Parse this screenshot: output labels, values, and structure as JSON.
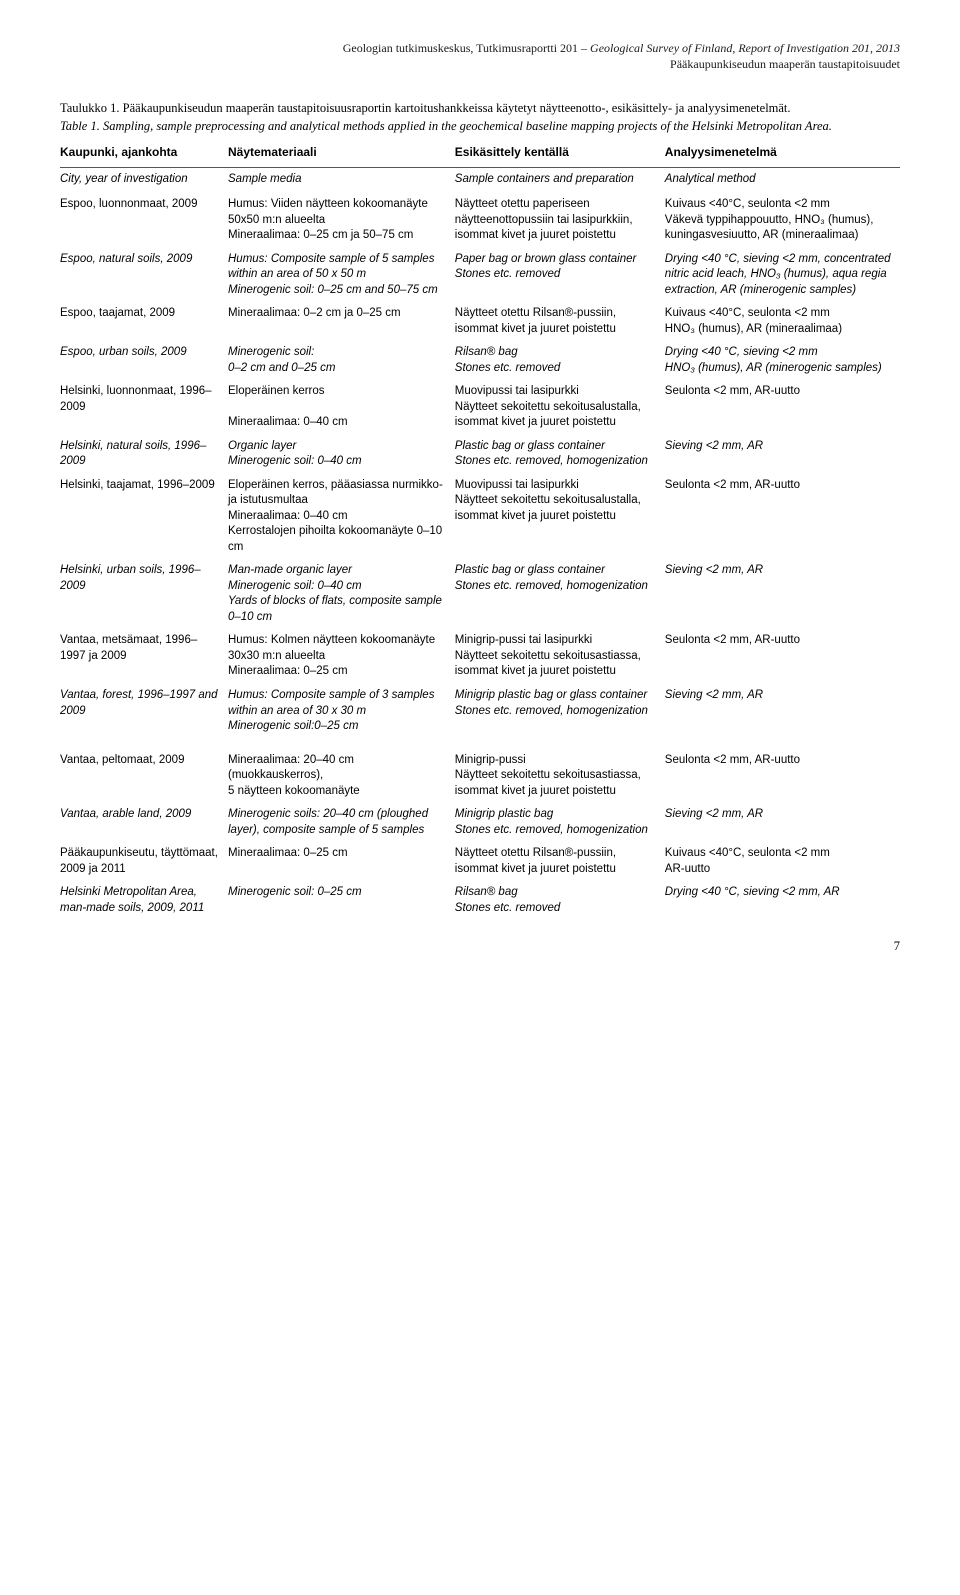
{
  "header": {
    "line1_left": "Geologian tutkimuskeskus, Tutkimusraportti 201 – ",
    "line1_right_italic": "Geological Survey of Finland, Report of Investigation 201, 2013",
    "line2": "Pääkaupunkiseudun maaperän taustapitoisuudet"
  },
  "caption": {
    "fi": "Taulukko 1. Pääkaupunkiseudun maaperän taustapitoisuusraportin kartoitushankkeissa käytetyt näytteenotto-, esikäsittely- ja analyysimenetelmät.",
    "en": "Table 1. Sampling, sample preprocessing and analytical methods applied in the geochemical baseline mapping projects of the Helsinki Metropolitan Area."
  },
  "table": {
    "headers_fi": [
      "Kaupunki, ajankohta",
      "Näytemateriaali",
      "Esikäsittely kentällä",
      "Analyysimenetelmä"
    ],
    "headers_en": [
      "City, year of investigation",
      "Sample media",
      "Sample containers and preparation",
      "Analytical method"
    ],
    "rows": [
      {
        "fi": [
          "Espoo, luonnonmaat, 2009",
          "Humus: Viiden näytteen kokoomanäyte 50x50 m:n alueelta\nMineraalimaa: 0–25 cm ja 50–75 cm",
          "Näytteet otettu paperiseen näytteenottopussiin tai lasipurkkiin, isommat kivet ja juuret poistettu",
          "Kuivaus <40°C, seulonta <2 mm\nVäkevä typpihappouutto, HNO₃ (humus), kuningasvesiuutto, AR (mineraalimaa)"
        ],
        "en": [
          "Espoo, natural soils, 2009",
          "Humus: Composite sample of 5 samples within an area of 50 x 50 m\nMinerogenic soil: 0–25 cm and 50–75 cm",
          "Paper bag or brown glass container\nStones etc. removed",
          "Drying <40 °C, sieving <2 mm, concentrated nitric acid leach, HNO₃ (humus), aqua regia extraction, AR (minerogenic samples)"
        ]
      },
      {
        "fi": [
          "Espoo, taajamat, 2009",
          "Mineraalimaa: 0–2 cm ja 0–25 cm",
          "Näytteet otettu Rilsan®-pussiin, isommat kivet ja juuret poistettu",
          "Kuivaus <40°C, seulonta <2 mm\nHNO₃ (humus), AR (mineraalimaa)"
        ],
        "en": [
          "Espoo, urban soils, 2009",
          "Minerogenic soil:\n0–2 cm and 0–25 cm",
          "Rilsan® bag\nStones etc. removed",
          "Drying <40 °C, sieving <2 mm\nHNO₃ (humus), AR (minerogenic samples)"
        ]
      },
      {
        "fi": [
          "Helsinki, luonnonmaat, 1996–2009",
          "Eloperäinen kerros\n\nMineraalimaa: 0–40 cm",
          "Muovipussi tai lasipurkki\nNäytteet sekoitettu sekoitusalustalla, isommat kivet ja juuret poistettu",
          "Seulonta <2 mm, AR-uutto"
        ],
        "en": [
          "Helsinki, natural soils, 1996–2009",
          "Organic layer\nMinerogenic soil: 0–40 cm",
          "Plastic bag or glass container\nStones etc. removed, homogenization",
          "Sieving <2 mm, AR"
        ]
      },
      {
        "fi": [
          "Helsinki, taajamat, 1996–2009",
          "Eloperäinen kerros, pääasiassa nurmikko- ja istutusmultaa\nMineraalimaa: 0–40 cm\nKerrostalojen pihoilta kokoomanäyte 0–10 cm",
          "Muovipussi tai lasipurkki\nNäytteet sekoitettu sekoitusalustalla, isommat kivet ja juuret poistettu",
          "Seulonta <2 mm, AR-uutto"
        ],
        "en": [
          "Helsinki, urban soils, 1996–2009",
          "Man-made organic layer\nMinerogenic soil: 0–40 cm\nYards of blocks of flats, composite sample 0–10 cm",
          "Plastic bag or glass container\nStones etc. removed, homogenization",
          "Sieving <2 mm, AR"
        ]
      },
      {
        "fi": [
          "Vantaa, metsämaat, 1996–1997 ja 2009",
          "Humus: Kolmen näytteen kokoomanäyte 30x30 m:n alueelta\nMineraalimaa: 0–25 cm",
          "Minigrip-pussi tai lasipurkki\nNäytteet sekoitettu sekoitusastiassa, isommat kivet ja juuret poistettu",
          "Seulonta <2 mm, AR-uutto"
        ],
        "en": [
          "Vantaa, forest, 1996–1997 and 2009",
          "Humus: Composite sample of 3 samples within an area of 30 x 30 m\nMinerogenic soil:0–25 cm",
          "Minigrip plastic bag or glass container\nStones etc. removed, homogenization",
          "Sieving <2 mm, AR"
        ]
      },
      {
        "fi": [
          "Vantaa, peltomaat, 2009",
          "Mineraalimaa: 20–40 cm (muokkauskerros),\n5 näytteen kokoomanäyte",
          "Minigrip-pussi\nNäytteet sekoitettu sekoitusastiassa, isommat kivet ja juuret poistettu",
          "Seulonta <2 mm, AR-uutto"
        ],
        "en": [
          "Vantaa, arable land, 2009",
          "Minerogenic soils: 20–40 cm (ploughed layer), composite sample of 5 samples",
          "Minigrip plastic bag\nStones etc. removed, homogenization",
          "Sieving <2 mm, AR"
        ],
        "gap": true
      },
      {
        "fi": [
          "Pääkaupunkiseutu, täyttömaat, 2009 ja 2011",
          "Mineraalimaa: 0–25 cm",
          "Näytteet otettu Rilsan®-pussiin, isommat kivet ja juuret poistettu",
          "Kuivaus <40°C, seulonta <2 mm\nAR-uutto"
        ],
        "en": [
          "Helsinki Metropolitan Area, man-made soils, 2009, 2011",
          "Minerogenic soil: 0–25 cm",
          "Rilsan® bag\nStones etc. removed",
          "Drying <40 °C, sieving <2 mm, AR"
        ]
      }
    ]
  },
  "page_number": "7"
}
